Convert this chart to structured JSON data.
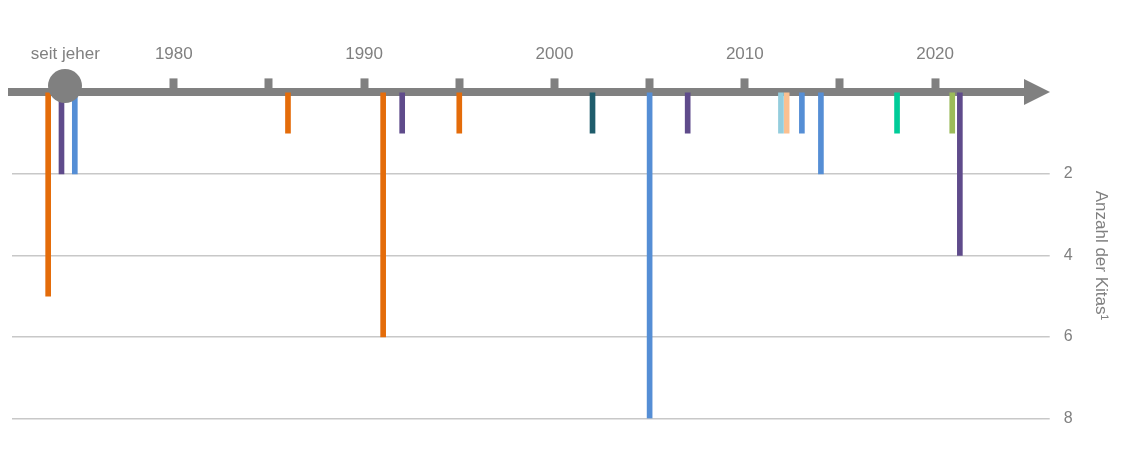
{
  "chart_data": {
    "type": "bar",
    "ylabel": "Anzahl der Kitas¹",
    "series": [
      {
        "color": "#e46c0a",
        "x": [
          1973.4,
          1986,
          1991,
          1995
        ],
        "values": [
          5,
          1,
          6,
          1
        ]
      },
      {
        "color": "#5f4b8b",
        "x": [
          1974.1,
          1992,
          2007,
          2021.3
        ],
        "values": [
          2,
          1,
          1,
          4
        ]
      },
      {
        "color": "#558ed5",
        "x": [
          1974.8,
          2005,
          2013,
          2014
        ],
        "values": [
          2,
          8,
          1,
          2
        ]
      },
      {
        "color": "#1f5c6b",
        "x": [
          2002
        ],
        "values": [
          1
        ]
      },
      {
        "color": "#93cddd",
        "x": [
          2011.9
        ],
        "values": [
          1
        ]
      },
      {
        "color": "#fac090",
        "x": [
          2012.2
        ],
        "values": [
          1
        ]
      },
      {
        "color": "#00cc99",
        "x": [
          2018
        ],
        "values": [
          1
        ]
      },
      {
        "color": "#9bbb59",
        "x": [
          2020.9
        ],
        "values": [
          1
        ]
      }
    ],
    "xlim": [
      1971.5,
      2025.6
    ],
    "xticks": [
      {
        "value": 1974.3,
        "label": "seit jeher"
      },
      1980,
      {
        "value": 1985,
        "label": null
      },
      1990,
      {
        "value": 1995,
        "label": null
      },
      2000,
      {
        "value": 2005,
        "label": null
      },
      2010,
      {
        "value": 2015,
        "label": null
      },
      2020
    ],
    "ylim": [
      8,
      0
    ],
    "yticks": [
      2,
      4,
      6,
      8
    ],
    "grid": "y",
    "legend": false
  }
}
